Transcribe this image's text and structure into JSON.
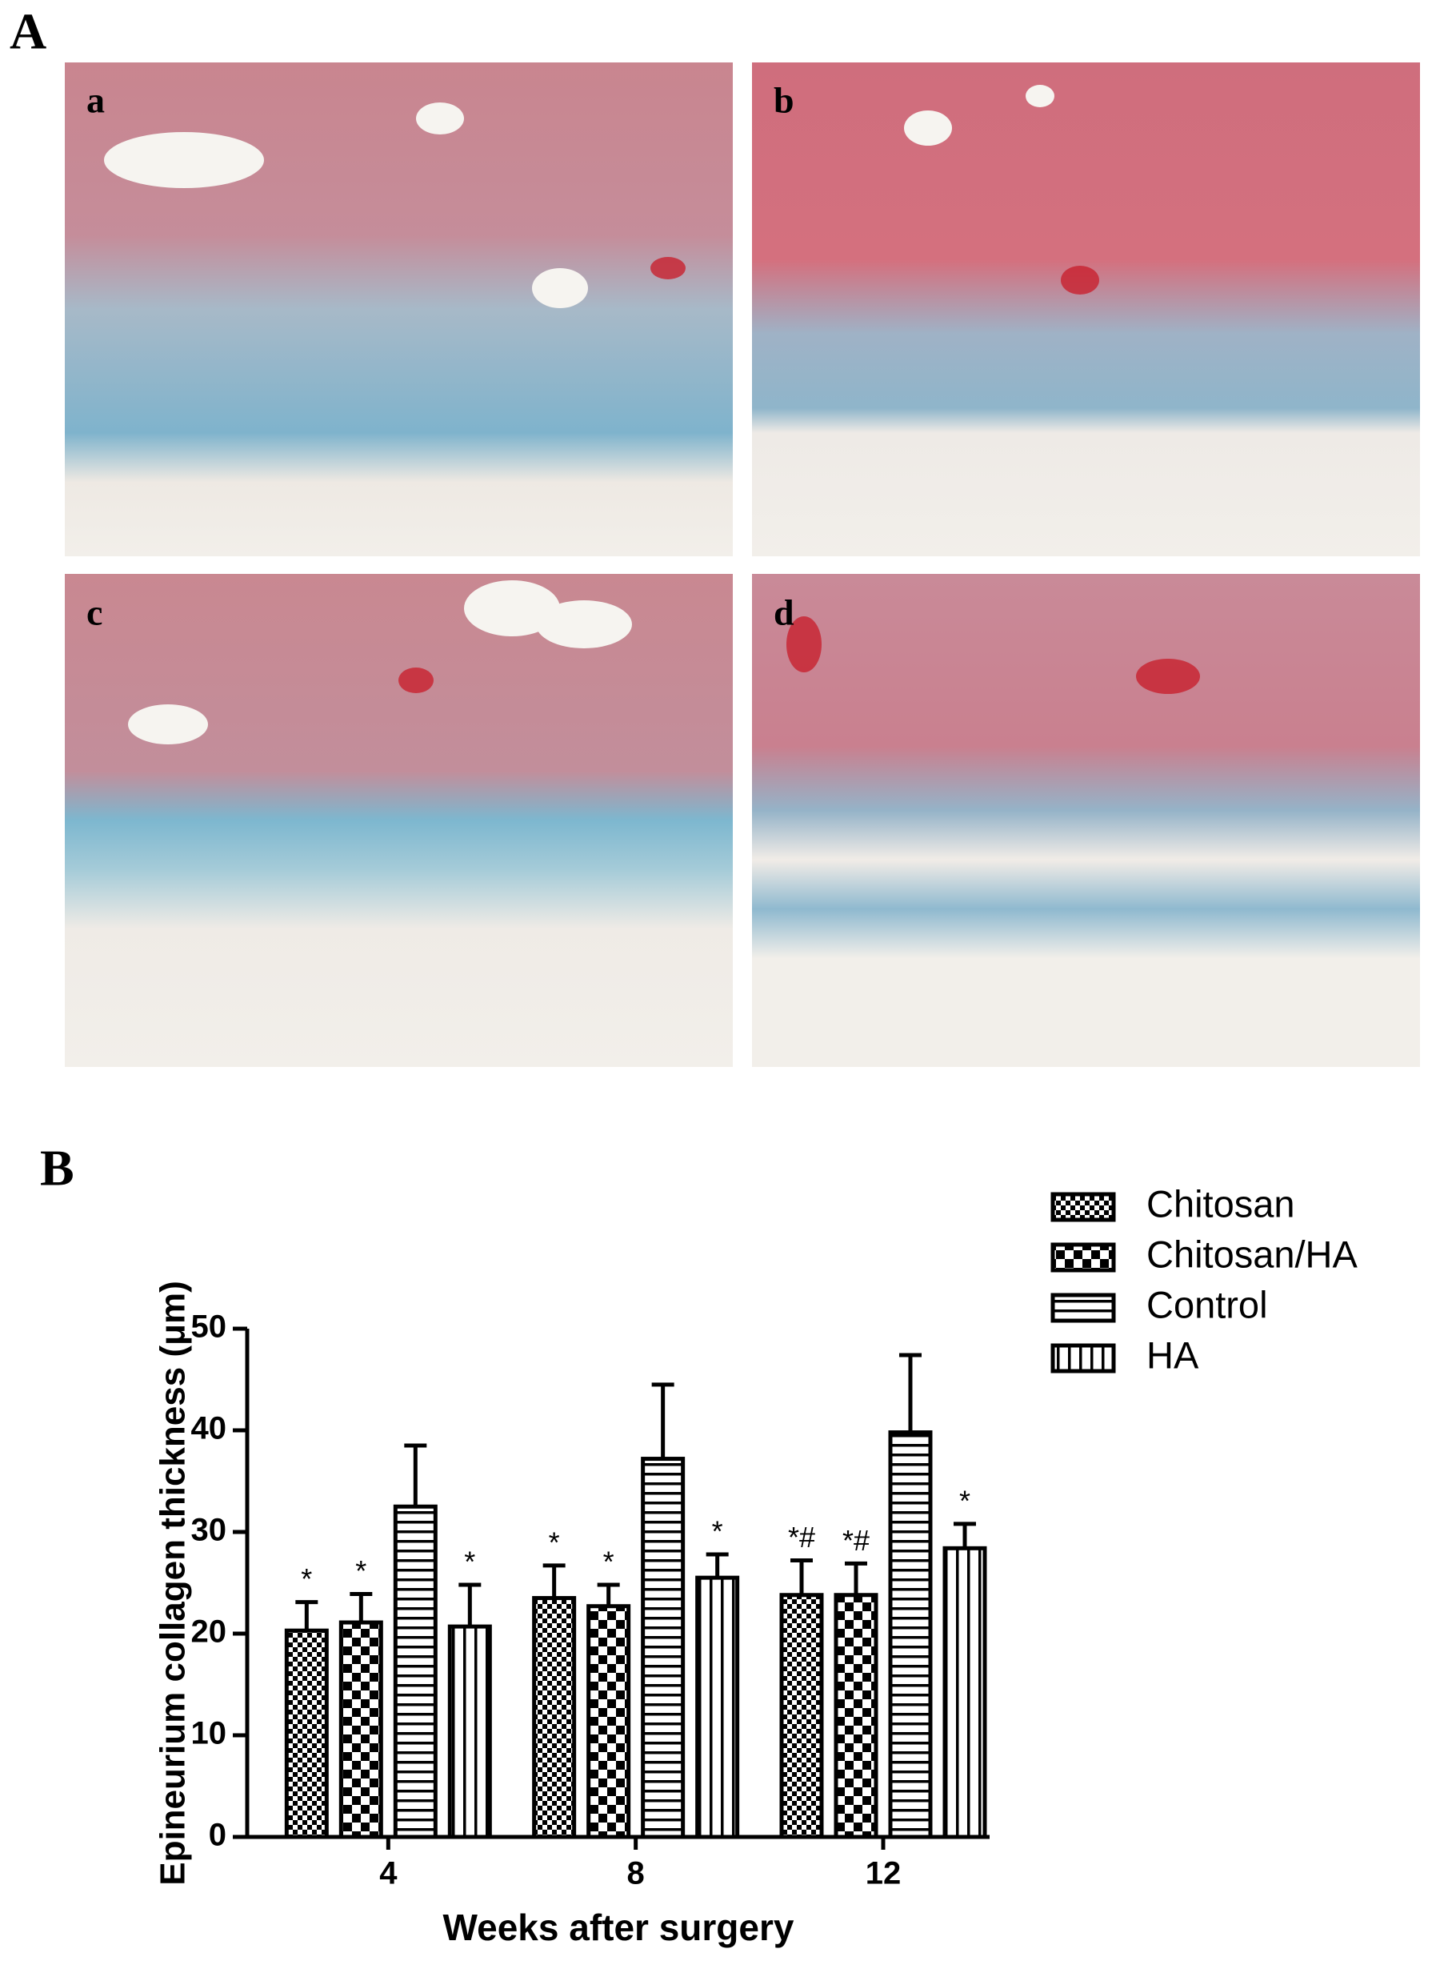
{
  "figure": {
    "panel_labels": [
      "A",
      "B"
    ],
    "image_labels": [
      "a",
      "b",
      "c",
      "d"
    ]
  },
  "chart_data": {
    "type": "bar",
    "y_label": "Epineurium collagen thickness (μm)",
    "x_label": "Weeks after surgery",
    "categories": [
      "4",
      "8",
      "12"
    ],
    "series": [
      {
        "name": "Chitosan",
        "color": "#000000",
        "pattern": "fine-check",
        "values": [
          20.3,
          23.5,
          23.8
        ],
        "errors": [
          2.8,
          3.2,
          3.4
        ],
        "annotations": [
          "*",
          "*",
          "*#"
        ]
      },
      {
        "name": "Chitosan/HA",
        "color": "#000000",
        "pattern": "check",
        "values": [
          21.1,
          22.7,
          23.8
        ],
        "errors": [
          2.8,
          2.1,
          3.1
        ],
        "annotations": [
          "*",
          "*",
          "*#"
        ]
      },
      {
        "name": "Control",
        "color": "#000000",
        "pattern": "hlines",
        "values": [
          32.5,
          37.2,
          39.8
        ],
        "errors": [
          6.0,
          7.3,
          7.6
        ],
        "annotations": [
          null,
          null,
          null
        ]
      },
      {
        "name": "HA",
        "color": "#000000",
        "pattern": "vlines",
        "values": [
          20.7,
          25.5,
          28.4
        ],
        "errors": [
          4.1,
          2.3,
          2.4
        ],
        "annotations": [
          "*",
          "*",
          "*"
        ]
      }
    ],
    "ylim": [
      0,
      50
    ],
    "yticks": [
      0,
      10,
      20,
      30,
      40,
      50
    ],
    "grid": false
  }
}
